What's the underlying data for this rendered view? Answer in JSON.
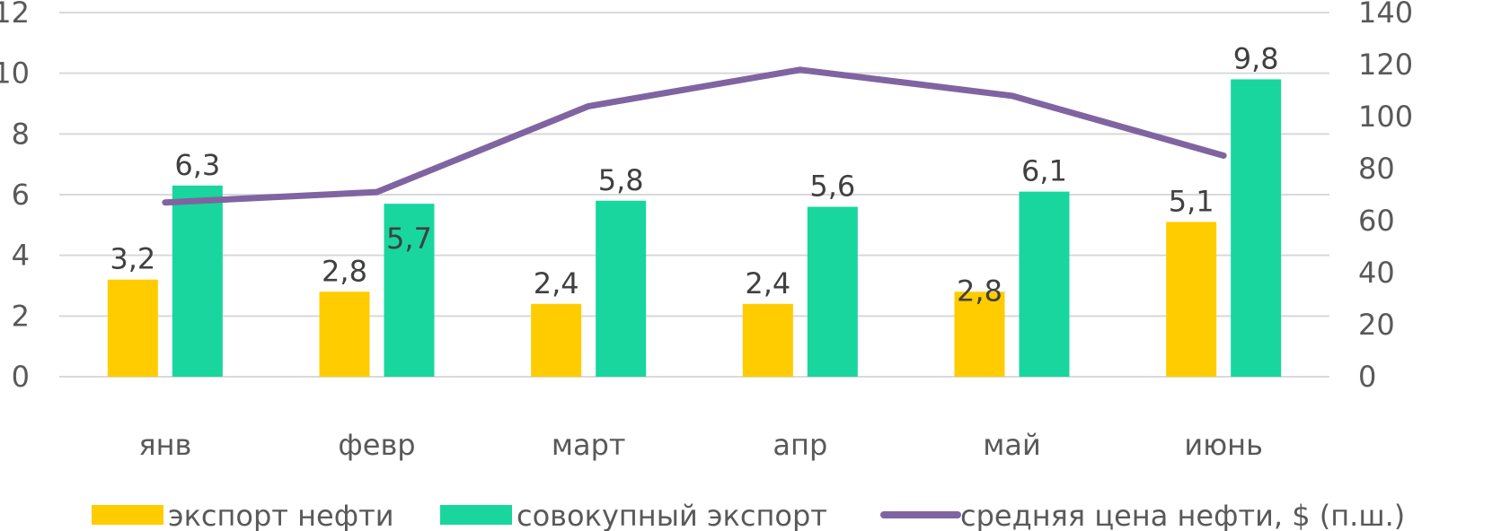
{
  "chart_data": {
    "type": "bar",
    "categories": [
      "янв",
      "февр",
      "март",
      "апр",
      "май",
      "июнь"
    ],
    "series": [
      {
        "name": "экспорт нефти",
        "type": "bar",
        "axis": "left",
        "color": "#FFCC00",
        "values": [
          3.2,
          2.8,
          2.4,
          2.4,
          2.8,
          5.1
        ],
        "labels": [
          "3,2",
          "2,8",
          "2,4",
          "2,4",
          "2,8",
          "5,1"
        ]
      },
      {
        "name": "совокупный экспорт",
        "type": "bar",
        "axis": "left",
        "color": "#19D69E",
        "values": [
          6.3,
          5.7,
          5.8,
          5.6,
          6.1,
          9.8
        ],
        "labels": [
          "6,3",
          "5,7",
          "5,8",
          "5,6",
          "6,1",
          "9,8"
        ]
      },
      {
        "name": "средняя цена нефти, $ (п.ш.)",
        "type": "line",
        "axis": "right",
        "color": "#8064A2",
        "values": [
          67,
          71,
          104,
          118,
          108,
          85
        ]
      }
    ],
    "y_left": {
      "ylim": [
        0,
        12
      ],
      "ticks": [
        "0",
        "2",
        "4",
        "6",
        "8",
        "10",
        "12"
      ]
    },
    "y_right": {
      "ylim": [
        0,
        140
      ],
      "ticks": [
        "0",
        "20",
        "40",
        "60",
        "80",
        "100",
        "120",
        "140"
      ]
    },
    "grid": true,
    "legend": "bottom"
  }
}
